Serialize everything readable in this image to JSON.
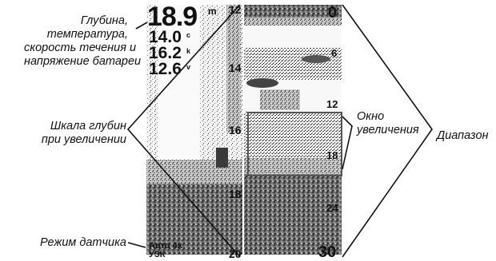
{
  "callouts": {
    "readouts_lines": [
      "Глубина,",
      "температура,",
      "скорость течения и",
      "напряжение батареи"
    ],
    "zoom_scale_lines": [
      "Шкала глубин",
      "при увеличении"
    ],
    "sensor_mode": "Режим датчика",
    "zoom_window_lines": [
      "Окно",
      "увеличения"
    ],
    "range": "Диапазон"
  },
  "readouts": {
    "depth": "18.9",
    "depth_unit": "m",
    "temperature": "14.0",
    "temperature_unit": "c",
    "speed": "16.2",
    "speed_unit": "k",
    "voltage": "12.6",
    "voltage_unit": "v"
  },
  "zoom_scale": [
    "12",
    "14",
    "16",
    "18",
    "20"
  ],
  "range_scale": [
    "0",
    "6",
    "12",
    "18",
    "24",
    "30"
  ],
  "sensor_mode_text": {
    "line1": "Авто 4x",
    "line2": "УЗК"
  },
  "colors": {
    "sonar_dark": "#555555",
    "sonar_light": "#eeeeee",
    "ink": "#111111"
  }
}
